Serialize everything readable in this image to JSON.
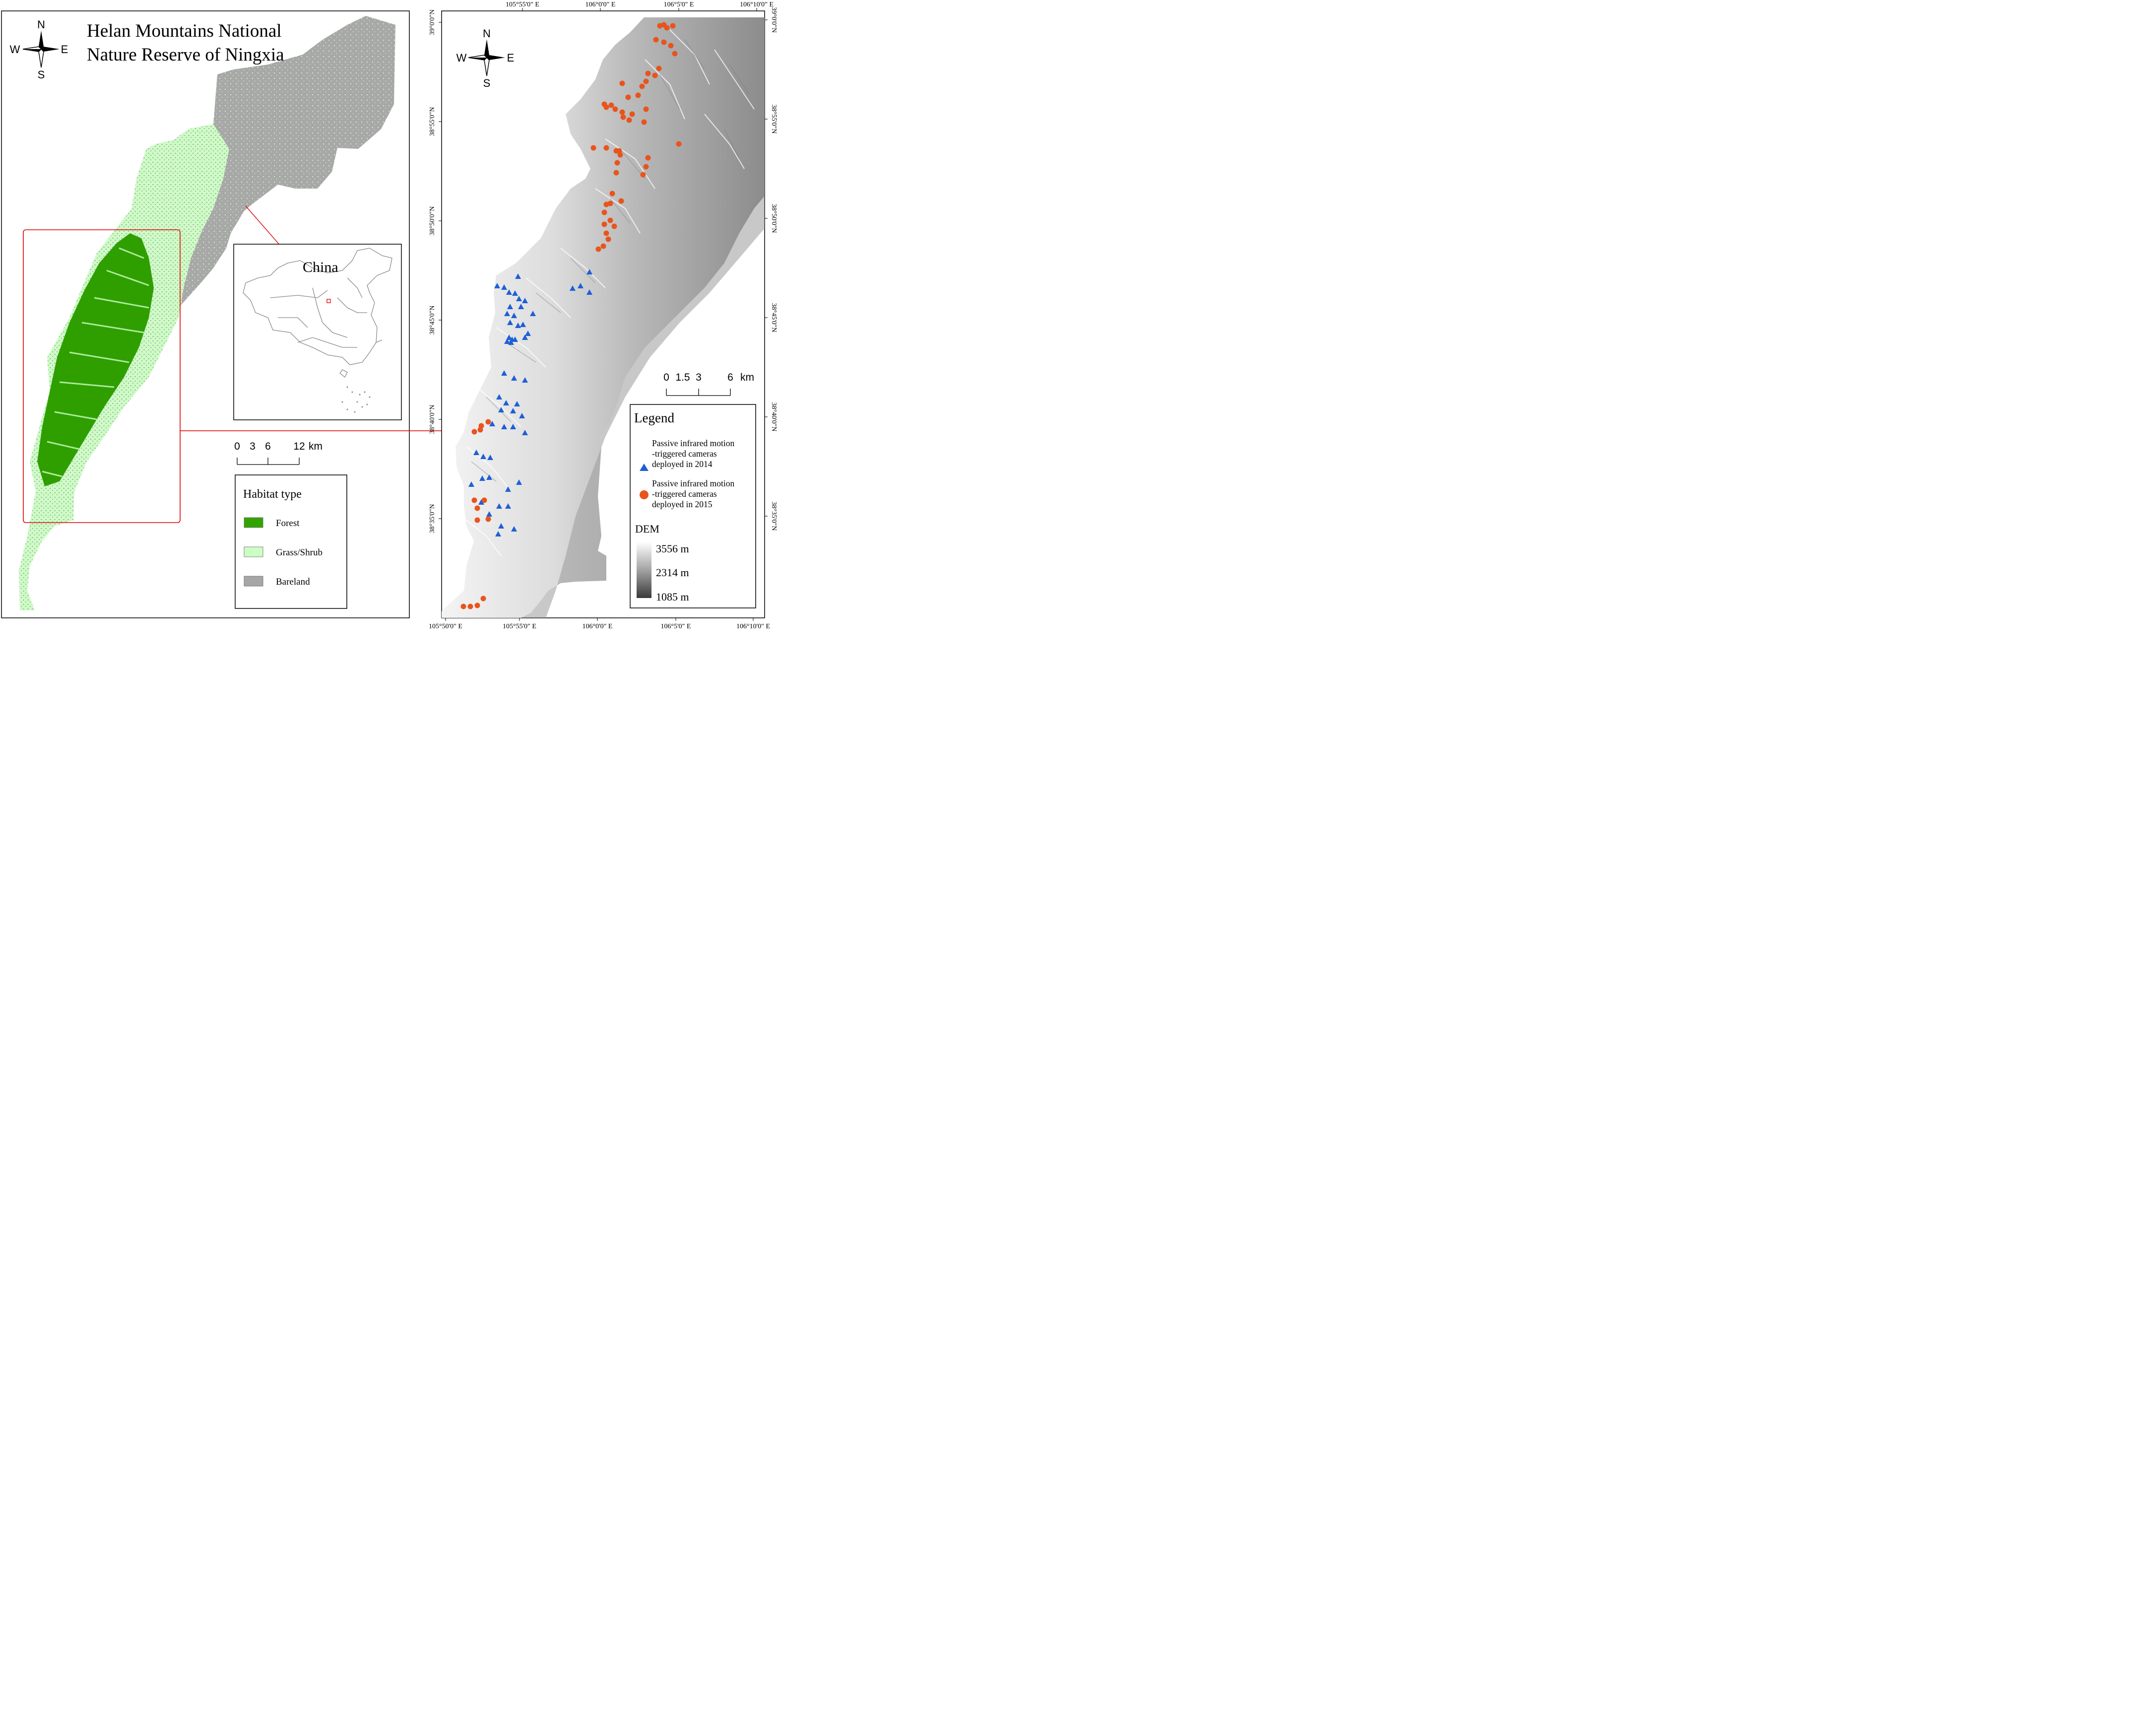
{
  "left_map": {
    "title_line1": "Helan Mountains National",
    "title_line2": "Nature Reserve of Ningxia",
    "compass": {
      "n": "N",
      "s": "S",
      "e": "E",
      "w": "W"
    },
    "inset_label": "China",
    "scalebar": {
      "ticks": [
        "0",
        "3",
        "6",
        "12"
      ],
      "unit": "km"
    },
    "legend": {
      "title": "Habitat type",
      "items": [
        {
          "label": "Forest",
          "color": "#33a300"
        },
        {
          "label": "Grass/Shrub",
          "color": "#ccffc4"
        },
        {
          "label": "Bareland",
          "color": "#a6a6a6"
        }
      ]
    },
    "colors": {
      "frame": "#000000",
      "highlight": "#e00000"
    }
  },
  "right_map": {
    "compass": {
      "n": "N",
      "s": "S",
      "e": "E",
      "w": "W"
    },
    "top_labels": [
      "105°55'0\" E",
      "106°0'0\" E",
      "106°5'0\" E",
      "106°10'0\" E"
    ],
    "bottom_labels": [
      "105°50'0\" E",
      "105°55'0\" E",
      "106°0'0\" E",
      "106°5'0\" E",
      "106°10'0\" E"
    ],
    "left_labels": [
      "39°0'0\"N",
      "38°55'0\"N",
      "38°50'0\"N",
      "38°45'0\"N",
      "38°40'0\"N",
      "38°35'0\"N"
    ],
    "right_labels": [
      "39°0'0\"N",
      "38°55'0\"N",
      "38°50'0\"N",
      "38°45'0\"N",
      "38°40'0\"N",
      "38°35'0\"N"
    ],
    "scalebar": {
      "ticks": [
        "0",
        "1.5",
        "3",
        "6"
      ],
      "unit": "km"
    },
    "legend": {
      "title": "Legend",
      "cam2014": {
        "line1": "Passive infrared motion",
        "line2": "-triggered cameras",
        "line3": "deployed in 2014",
        "color": "#1f5fd6"
      },
      "cam2015": {
        "line1": "Passive infrared motion",
        "line2": "-triggered cameras",
        "line3": "deployed in 2015",
        "color": "#e8541c"
      },
      "dem_title": "DEM",
      "dem_high": "3556 m",
      "dem_mid": "2314 m",
      "dem_low": "1085 m"
    }
  }
}
